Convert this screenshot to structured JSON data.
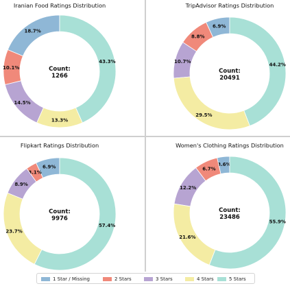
{
  "chart_data": [
    {
      "type": "pie",
      "title": "Iranian Food Ratings Distribution",
      "center_label": "Count:",
      "center_value": "1266",
      "categories": [
        "1 Star / Missing",
        "2 Stars",
        "3 Stars",
        "4 Stars",
        "5 Stars"
      ],
      "values": [
        18.7,
        10.1,
        14.5,
        13.3,
        43.3
      ],
      "labels": [
        "18.7%",
        "10.1%",
        "14.5%",
        "13.3%",
        "43.3%"
      ]
    },
    {
      "type": "pie",
      "title": "TripAdvisor Ratings Distribution",
      "center_label": "Count:",
      "center_value": "20491",
      "categories": [
        "1 Star / Missing",
        "2 Stars",
        "3 Stars",
        "4 Stars",
        "5 Stars"
      ],
      "values": [
        6.9,
        8.8,
        10.7,
        29.5,
        44.2
      ],
      "labels": [
        "6.9%",
        "8.8%",
        "10.7%",
        "29.5%",
        "44.2%"
      ]
    },
    {
      "type": "pie",
      "title": "Flipkart Ratings Distribution",
      "center_label": "Count:",
      "center_value": "9976",
      "categories": [
        "1 Star / Missing",
        "2 Stars",
        "3 Stars",
        "4 Stars",
        "5 Stars"
      ],
      "values": [
        6.9,
        3.1,
        8.9,
        23.7,
        57.4
      ],
      "labels": [
        "6.9%",
        "3.1%",
        "8.9%",
        "23.7%",
        "57.4%"
      ]
    },
    {
      "type": "pie",
      "title": "Women's Clothing Ratings Distribution",
      "center_label": "Count:",
      "center_value": "23486",
      "categories": [
        "1 Star / Missing",
        "2 Stars",
        "3 Stars",
        "4 Stars",
        "5 Stars"
      ],
      "values": [
        3.6,
        6.7,
        12.2,
        21.6,
        55.9
      ],
      "labels": [
        "3.6%",
        "6.7%",
        "12.2%",
        "21.6%",
        "55.9%"
      ]
    }
  ],
  "colors": [
    "#8fb7d6",
    "#f0897a",
    "#b7a4d2",
    "#f4eca3",
    "#a8e0d6"
  ],
  "legend": {
    "placement": "bottom-center",
    "items": [
      "1 Star / Missing",
      "2 Stars",
      "3 Stars",
      "4 Stars",
      "5 Stars"
    ]
  }
}
